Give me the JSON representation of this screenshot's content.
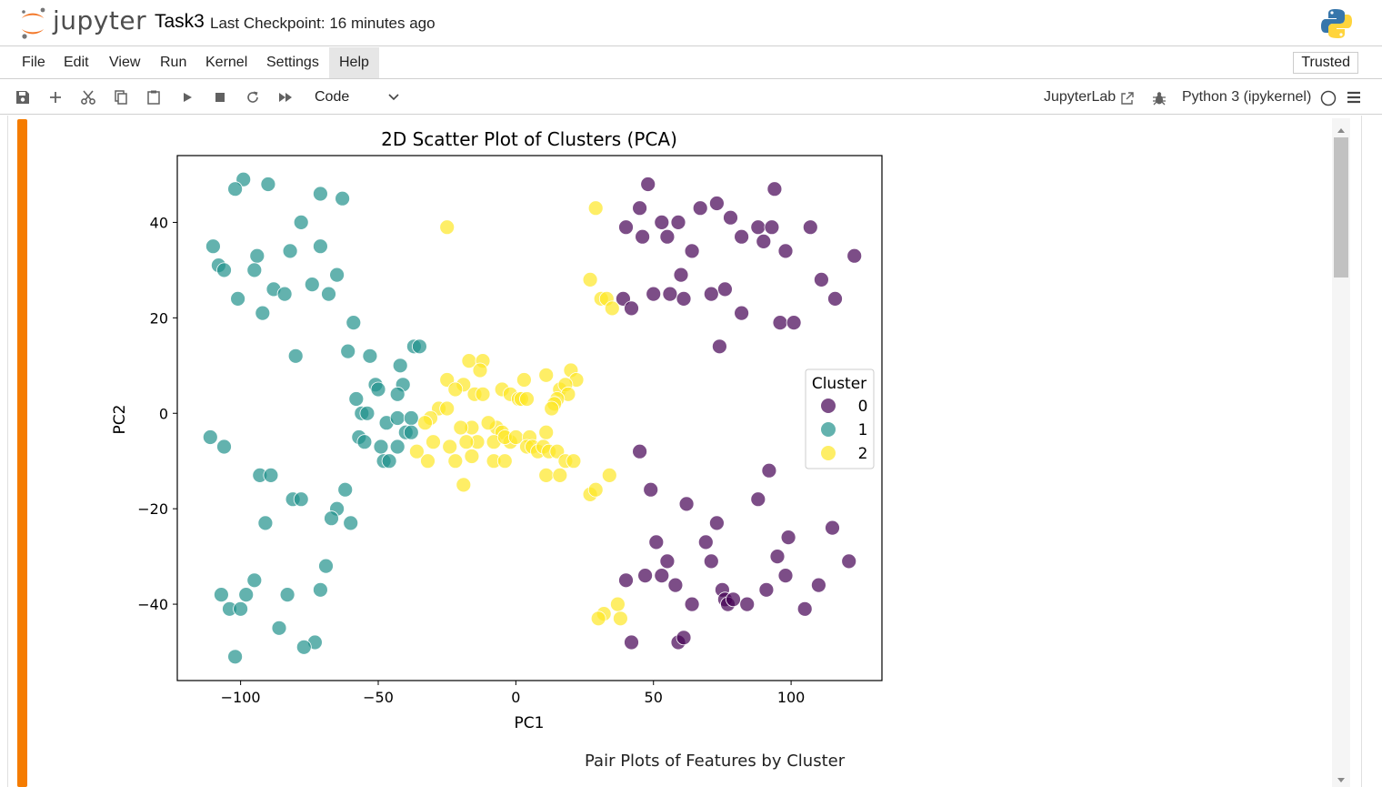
{
  "app": {
    "logo_text": "jupyter",
    "notebook_title": "Task3",
    "checkpoint": "Last Checkpoint: 16 minutes ago",
    "trusted": "Trusted"
  },
  "menu": [
    "File",
    "Edit",
    "View",
    "Run",
    "Kernel",
    "Settings",
    "Help"
  ],
  "toolbar": {
    "icons": [
      "save-icon",
      "add-icon",
      "cut-icon",
      "copy-icon",
      "paste-icon",
      "run-icon",
      "stop-icon",
      "restart-icon",
      "run-all-icon"
    ],
    "cell_type": "Code",
    "jupyterlab_link": "JupyterLab",
    "kernel": "Python 3 (ipykernel)"
  },
  "colors": {
    "cell_bar": "#f57c00",
    "cluster_0": "#440154",
    "cluster_1": "#21918c",
    "cluster_2": "#fde725"
  },
  "chart_data": {
    "type": "scatter",
    "title": "2D Scatter Plot of Clusters (PCA)",
    "xlabel": "PC1",
    "ylabel": "PC2",
    "xlim": [
      -123,
      133
    ],
    "ylim": [
      -56,
      54
    ],
    "xticks": [
      -100,
      -50,
      0,
      50,
      100
    ],
    "yticks": [
      -40,
      -20,
      0,
      20,
      40
    ],
    "xtick_labels": [
      "−100",
      "−50",
      "0",
      "50",
      "100"
    ],
    "ytick_labels": [
      "−40",
      "−20",
      "0",
      "20",
      "40"
    ],
    "legend": {
      "title": "Cluster",
      "placement": "center-right",
      "labels": [
        "0",
        "1",
        "2"
      ]
    },
    "series": [
      {
        "name": "0",
        "points": [
          [
            48,
            48
          ],
          [
            45,
            43
          ],
          [
            53,
            40
          ],
          [
            59,
            40
          ],
          [
            40,
            39
          ],
          [
            46,
            37
          ],
          [
            55,
            37
          ],
          [
            67,
            43
          ],
          [
            73,
            44
          ],
          [
            78,
            41
          ],
          [
            82,
            37
          ],
          [
            88,
            39
          ],
          [
            90,
            36
          ],
          [
            93,
            39
          ],
          [
            94,
            47
          ],
          [
            98,
            34
          ],
          [
            107,
            39
          ],
          [
            123,
            33
          ],
          [
            64,
            34
          ],
          [
            60,
            29
          ],
          [
            111,
            28
          ],
          [
            116,
            24
          ],
          [
            76,
            26
          ],
          [
            71,
            25
          ],
          [
            50,
            25
          ],
          [
            56,
            25
          ],
          [
            61,
            24
          ],
          [
            39,
            24
          ],
          [
            42,
            22
          ],
          [
            82,
            21
          ],
          [
            96,
            19
          ],
          [
            101,
            19
          ],
          [
            74,
            14
          ],
          [
            45,
            -8
          ],
          [
            92,
            -12
          ],
          [
            49,
            -16
          ],
          [
            62,
            -19
          ],
          [
            88,
            -18
          ],
          [
            73,
            -23
          ],
          [
            115,
            -24
          ],
          [
            51,
            -27
          ],
          [
            69,
            -27
          ],
          [
            99,
            -26
          ],
          [
            55,
            -31
          ],
          [
            71,
            -31
          ],
          [
            95,
            -30
          ],
          [
            121,
            -31
          ],
          [
            53,
            -34
          ],
          [
            58,
            -36
          ],
          [
            40,
            -35
          ],
          [
            47,
            -34
          ],
          [
            98,
            -34
          ],
          [
            75,
            -37
          ],
          [
            110,
            -36
          ],
          [
            91,
            -37
          ],
          [
            76,
            -39
          ],
          [
            77,
            -40
          ],
          [
            79,
            -39
          ],
          [
            64,
            -40
          ],
          [
            84,
            -40
          ],
          [
            105,
            -41
          ],
          [
            59,
            -48
          ],
          [
            61,
            -47
          ],
          [
            42,
            -48
          ]
        ]
      },
      {
        "name": "1",
        "points": [
          [
            -99,
            49
          ],
          [
            -102,
            47
          ],
          [
            -90,
            48
          ],
          [
            -71,
            46
          ],
          [
            -63,
            45
          ],
          [
            -78,
            40
          ],
          [
            -110,
            35
          ],
          [
            -94,
            33
          ],
          [
            -82,
            34
          ],
          [
            -71,
            35
          ],
          [
            -108,
            31
          ],
          [
            -95,
            30
          ],
          [
            -106,
            30
          ],
          [
            -65,
            29
          ],
          [
            -88,
            26
          ],
          [
            -84,
            25
          ],
          [
            -74,
            27
          ],
          [
            -68,
            25
          ],
          [
            -101,
            24
          ],
          [
            -92,
            21
          ],
          [
            -59,
            19
          ],
          [
            -80,
            12
          ],
          [
            -61,
            13
          ],
          [
            -53,
            12
          ],
          [
            -37,
            14
          ],
          [
            -35,
            14
          ],
          [
            -42,
            10
          ],
          [
            -51,
            6
          ],
          [
            -50,
            5
          ],
          [
            -41,
            6
          ],
          [
            -43,
            4
          ],
          [
            -58,
            3
          ],
          [
            -56,
            0
          ],
          [
            -54,
            0
          ],
          [
            -47,
            -2
          ],
          [
            -43,
            -1
          ],
          [
            -38,
            -1
          ],
          [
            -40,
            -4
          ],
          [
            -38,
            -4
          ],
          [
            -57,
            -5
          ],
          [
            -55,
            -6
          ],
          [
            -49,
            -7
          ],
          [
            -43,
            -7
          ],
          [
            -48,
            -10
          ],
          [
            -46,
            -10
          ],
          [
            -111,
            -5
          ],
          [
            -106,
            -7
          ],
          [
            -93,
            -13
          ],
          [
            -89,
            -13
          ],
          [
            -62,
            -16
          ],
          [
            -81,
            -18
          ],
          [
            -78,
            -18
          ],
          [
            -65,
            -20
          ],
          [
            -67,
            -22
          ],
          [
            -60,
            -23
          ],
          [
            -91,
            -23
          ],
          [
            -69,
            -32
          ],
          [
            -95,
            -35
          ],
          [
            -107,
            -38
          ],
          [
            -98,
            -38
          ],
          [
            -83,
            -38
          ],
          [
            -71,
            -37
          ],
          [
            -104,
            -41
          ],
          [
            -100,
            -41
          ],
          [
            -86,
            -45
          ],
          [
            -73,
            -48
          ],
          [
            -77,
            -49
          ],
          [
            -102,
            -51
          ]
        ]
      },
      {
        "name": "2",
        "points": [
          [
            -25,
            39
          ],
          [
            29,
            43
          ],
          [
            27,
            28
          ],
          [
            31,
            24
          ],
          [
            33,
            24
          ],
          [
            35,
            22
          ],
          [
            -17,
            11
          ],
          [
            -12,
            11
          ],
          [
            -13,
            9
          ],
          [
            11,
            8
          ],
          [
            20,
            9
          ],
          [
            22,
            7
          ],
          [
            3,
            7
          ],
          [
            -25,
            7
          ],
          [
            -19,
            6
          ],
          [
            -22,
            5
          ],
          [
            -15,
            4
          ],
          [
            -5,
            5
          ],
          [
            -2,
            4
          ],
          [
            1,
            3
          ],
          [
            2,
            3
          ],
          [
            4,
            3
          ],
          [
            16,
            5
          ],
          [
            18,
            6
          ],
          [
            19,
            4
          ],
          [
            15,
            3
          ],
          [
            14,
            2
          ],
          [
            13,
            1
          ],
          [
            -12,
            4
          ],
          [
            -28,
            1
          ],
          [
            -25,
            1
          ],
          [
            -31,
            -1
          ],
          [
            -33,
            -2
          ],
          [
            -16,
            -3
          ],
          [
            -20,
            -3
          ],
          [
            -7,
            -3
          ],
          [
            -5,
            -4
          ],
          [
            -10,
            -2
          ],
          [
            -2,
            -6
          ],
          [
            -8,
            -6
          ],
          [
            -4,
            -5
          ],
          [
            0,
            -5
          ],
          [
            5,
            -5
          ],
          [
            11,
            -4
          ],
          [
            -14,
            -6
          ],
          [
            -18,
            -6
          ],
          [
            -24,
            -7
          ],
          [
            -30,
            -6
          ],
          [
            -36,
            -8
          ],
          [
            -32,
            -10
          ],
          [
            -22,
            -10
          ],
          [
            -16,
            -9
          ],
          [
            -8,
            -10
          ],
          [
            -4,
            -10
          ],
          [
            4,
            -7
          ],
          [
            6,
            -7
          ],
          [
            8,
            -8
          ],
          [
            10,
            -7
          ],
          [
            12,
            -8
          ],
          [
            15,
            -8
          ],
          [
            -19,
            -15
          ],
          [
            18,
            -10
          ],
          [
            21,
            -10
          ],
          [
            11,
            -13
          ],
          [
            16,
            -13
          ],
          [
            34,
            -13
          ],
          [
            27,
            -17
          ],
          [
            29,
            -16
          ],
          [
            37,
            -40
          ],
          [
            32,
            -42
          ],
          [
            30,
            -43
          ],
          [
            38,
            -43
          ]
        ]
      }
    ]
  },
  "next_output_title": "Pair Plots of Features by Cluster"
}
